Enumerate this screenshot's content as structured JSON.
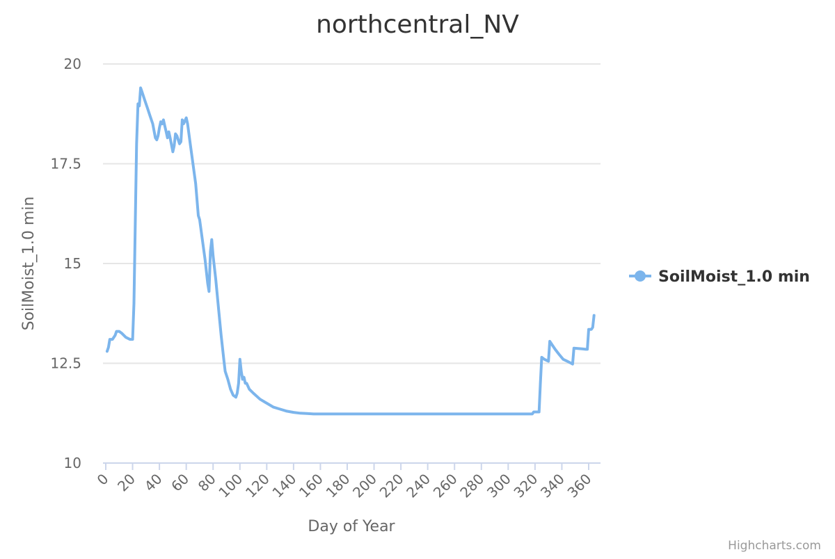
{
  "chart_data": {
    "type": "line",
    "title": "northcentral_NV",
    "xlabel": "Day of Year",
    "ylabel": "SoilMoist_1.0 min",
    "xlim": [
      0,
      365
    ],
    "ylim": [
      10,
      20
    ],
    "x_ticks": [
      "0",
      "20",
      "40",
      "60",
      "80",
      "100",
      "120",
      "140",
      "160",
      "180",
      "200",
      "220",
      "240",
      "260",
      "280",
      "300",
      "320",
      "340",
      "360"
    ],
    "y_ticks": [
      "10",
      "12.5",
      "15",
      "17.5",
      "20"
    ],
    "grid": true,
    "legend_position": "right",
    "series": [
      {
        "name": "SoilMoist_1.0 min",
        "color": "#7cb5ec",
        "points": [
          [
            1,
            12.8
          ],
          [
            2,
            12.9
          ],
          [
            3,
            13.1
          ],
          [
            5,
            13.1
          ],
          [
            7,
            13.2
          ],
          [
            8,
            13.3
          ],
          [
            10,
            13.3
          ],
          [
            12,
            13.25
          ],
          [
            15,
            13.15
          ],
          [
            18,
            13.1
          ],
          [
            19,
            13.1
          ],
          [
            20,
            13.1
          ],
          [
            21,
            14.0
          ],
          [
            22,
            16.0
          ],
          [
            23,
            18.0
          ],
          [
            24,
            19.0
          ],
          [
            25,
            18.95
          ],
          [
            26,
            19.4
          ],
          [
            27,
            19.3
          ],
          [
            29,
            19.1
          ],
          [
            31,
            18.9
          ],
          [
            33,
            18.7
          ],
          [
            35,
            18.5
          ],
          [
            37,
            18.15
          ],
          [
            38,
            18.1
          ],
          [
            39,
            18.2
          ],
          [
            40,
            18.4
          ],
          [
            41,
            18.55
          ],
          [
            42,
            18.5
          ],
          [
            43,
            18.6
          ],
          [
            44,
            18.45
          ],
          [
            45,
            18.3
          ],
          [
            46,
            18.15
          ],
          [
            47,
            18.3
          ],
          [
            48,
            18.15
          ],
          [
            50,
            17.8
          ],
          [
            51,
            17.95
          ],
          [
            52,
            18.25
          ],
          [
            53,
            18.2
          ],
          [
            55,
            18.0
          ],
          [
            56,
            18.05
          ],
          [
            57,
            18.6
          ],
          [
            58,
            18.5
          ],
          [
            60,
            18.65
          ],
          [
            61,
            18.5
          ],
          [
            63,
            18.0
          ],
          [
            65,
            17.5
          ],
          [
            67,
            17.0
          ],
          [
            69,
            16.2
          ],
          [
            70,
            16.1
          ],
          [
            72,
            15.6
          ],
          [
            74,
            15.1
          ],
          [
            76,
            14.5
          ],
          [
            77,
            14.3
          ],
          [
            78,
            15.3
          ],
          [
            79,
            15.6
          ],
          [
            80,
            15.2
          ],
          [
            82,
            14.6
          ],
          [
            84,
            13.9
          ],
          [
            86,
            13.2
          ],
          [
            88,
            12.6
          ],
          [
            89,
            12.3
          ],
          [
            91,
            12.1
          ],
          [
            93,
            11.85
          ],
          [
            95,
            11.7
          ],
          [
            97,
            11.65
          ],
          [
            98,
            11.75
          ],
          [
            99,
            12.0
          ],
          [
            100,
            12.6
          ],
          [
            101,
            12.3
          ],
          [
            102,
            12.1
          ],
          [
            103,
            12.15
          ],
          [
            104,
            12.0
          ],
          [
            105,
            12.0
          ],
          [
            107,
            11.85
          ],
          [
            110,
            11.75
          ],
          [
            115,
            11.6
          ],
          [
            120,
            11.5
          ],
          [
            125,
            11.4
          ],
          [
            130,
            11.35
          ],
          [
            135,
            11.3
          ],
          [
            140,
            11.27
          ],
          [
            145,
            11.25
          ],
          [
            150,
            11.24
          ],
          [
            155,
            11.23
          ],
          [
            160,
            11.23
          ],
          [
            200,
            11.23
          ],
          [
            250,
            11.23
          ],
          [
            300,
            11.23
          ],
          [
            318,
            11.23
          ],
          [
            319,
            11.28
          ],
          [
            320,
            11.28
          ],
          [
            323,
            11.28
          ],
          [
            324,
            12.0
          ],
          [
            325,
            12.65
          ],
          [
            327,
            12.6
          ],
          [
            330,
            12.55
          ],
          [
            331,
            13.05
          ],
          [
            333,
            12.95
          ],
          [
            335,
            12.85
          ],
          [
            338,
            12.72
          ],
          [
            341,
            12.6
          ],
          [
            344,
            12.55
          ],
          [
            347,
            12.5
          ],
          [
            348,
            12.48
          ],
          [
            349,
            12.88
          ],
          [
            352,
            12.87
          ],
          [
            355,
            12.86
          ],
          [
            358,
            12.85
          ],
          [
            359,
            12.85
          ],
          [
            360,
            13.35
          ],
          [
            362,
            13.35
          ],
          [
            363,
            13.4
          ],
          [
            364,
            13.7
          ]
        ]
      }
    ]
  },
  "credits": "Highcharts.com"
}
